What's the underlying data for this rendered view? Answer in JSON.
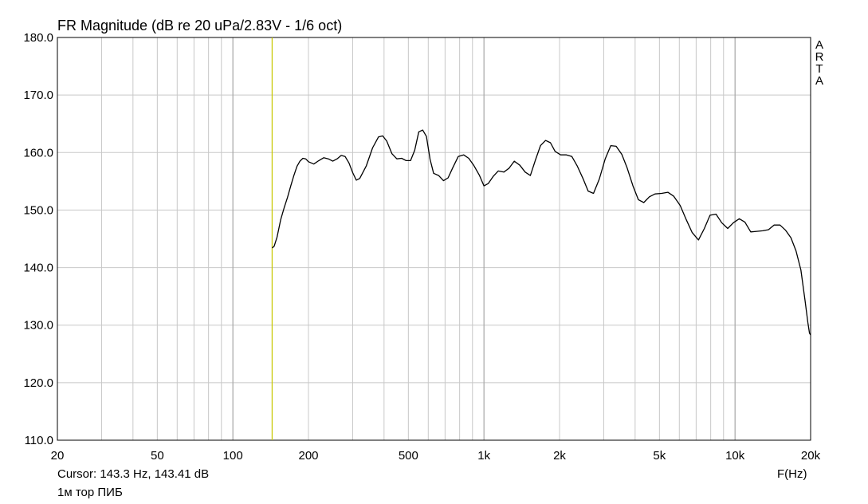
{
  "chart_data": {
    "type": "line",
    "title": "FR Magnitude (dB re 20 uPa/2.83V - 1/6 oct)",
    "side_label": [
      "A",
      "R",
      "T",
      "A"
    ],
    "xlabel": "F(Hz)",
    "ylabel": "",
    "xscale": "log",
    "xlim": [
      20,
      20000
    ],
    "ylim": [
      110,
      180
    ],
    "grid": true,
    "x_tick_values": [
      20,
      50,
      100,
      200,
      500,
      1000,
      2000,
      5000,
      10000,
      20000
    ],
    "x_tick_labels": [
      "20",
      "50",
      "100",
      "200",
      "500",
      "1k",
      "2k",
      "5k",
      "10k",
      "20k"
    ],
    "y_tick_values": [
      110,
      120,
      130,
      140,
      150,
      160,
      170,
      180
    ],
    "y_tick_labels": [
      "110.0",
      "120.0",
      "130.0",
      "140.0",
      "150.0",
      "160.0",
      "170.0",
      "180.0"
    ],
    "cursor": {
      "x": 143.3,
      "y": 143.41,
      "color": "#c8c800"
    },
    "cursor_text": "Cursor: 143.3 Hz, 143.41 dB",
    "note": "1м тор ПИБ",
    "series": [
      {
        "color": "#000000",
        "points": [
          [
            143.3,
            143.4
          ],
          [
            146,
            143.7
          ],
          [
            150,
            145.3
          ],
          [
            155,
            148.3
          ],
          [
            160,
            150.4
          ],
          [
            165,
            152.2
          ],
          [
            170,
            154.2
          ],
          [
            175,
            156.0
          ],
          [
            180,
            157.6
          ],
          [
            185,
            158.5
          ],
          [
            190,
            159.0
          ],
          [
            195,
            158.9
          ],
          [
            200,
            158.4
          ],
          [
            210,
            158.0
          ],
          [
            220,
            158.6
          ],
          [
            230,
            159.1
          ],
          [
            240,
            158.9
          ],
          [
            250,
            158.5
          ],
          [
            260,
            158.9
          ],
          [
            270,
            159.5
          ],
          [
            280,
            159.3
          ],
          [
            290,
            158.2
          ],
          [
            300,
            156.5
          ],
          [
            310,
            155.2
          ],
          [
            320,
            155.5
          ],
          [
            340,
            157.7
          ],
          [
            360,
            160.8
          ],
          [
            380,
            162.7
          ],
          [
            395,
            162.9
          ],
          [
            410,
            162.0
          ],
          [
            430,
            159.8
          ],
          [
            450,
            158.9
          ],
          [
            470,
            159.0
          ],
          [
            490,
            158.6
          ],
          [
            510,
            158.6
          ],
          [
            530,
            160.4
          ],
          [
            550,
            163.6
          ],
          [
            570,
            163.9
          ],
          [
            590,
            162.8
          ],
          [
            610,
            158.8
          ],
          [
            630,
            156.4
          ],
          [
            660,
            156.0
          ],
          [
            690,
            155.1
          ],
          [
            720,
            155.6
          ],
          [
            750,
            157.3
          ],
          [
            790,
            159.3
          ],
          [
            830,
            159.6
          ],
          [
            870,
            159.0
          ],
          [
            910,
            157.8
          ],
          [
            960,
            156.0
          ],
          [
            1000,
            154.2
          ],
          [
            1040,
            154.6
          ],
          [
            1090,
            155.9
          ],
          [
            1140,
            156.8
          ],
          [
            1200,
            156.6
          ],
          [
            1260,
            157.3
          ],
          [
            1320,
            158.5
          ],
          [
            1390,
            157.8
          ],
          [
            1460,
            156.6
          ],
          [
            1530,
            156.0
          ],
          [
            1600,
            158.6
          ],
          [
            1680,
            161.2
          ],
          [
            1760,
            162.1
          ],
          [
            1840,
            161.7
          ],
          [
            1920,
            160.2
          ],
          [
            2020,
            159.6
          ],
          [
            2130,
            159.6
          ],
          [
            2240,
            159.3
          ],
          [
            2350,
            157.7
          ],
          [
            2480,
            155.5
          ],
          [
            2600,
            153.3
          ],
          [
            2730,
            152.9
          ],
          [
            2880,
            155.4
          ],
          [
            3040,
            158.9
          ],
          [
            3200,
            161.2
          ],
          [
            3360,
            161.1
          ],
          [
            3540,
            159.7
          ],
          [
            3720,
            157.3
          ],
          [
            3920,
            154.2
          ],
          [
            4120,
            151.8
          ],
          [
            4330,
            151.3
          ],
          [
            4560,
            152.3
          ],
          [
            4800,
            152.8
          ],
          [
            5100,
            152.9
          ],
          [
            5400,
            153.1
          ],
          [
            5700,
            152.4
          ],
          [
            6050,
            150.8
          ],
          [
            6400,
            148.3
          ],
          [
            6750,
            146.1
          ],
          [
            7150,
            144.8
          ],
          [
            7550,
            146.8
          ],
          [
            7950,
            149.1
          ],
          [
            8400,
            149.3
          ],
          [
            8850,
            147.8
          ],
          [
            9350,
            146.8
          ],
          [
            9850,
            147.8
          ],
          [
            10400,
            148.5
          ],
          [
            10950,
            147.9
          ],
          [
            11550,
            146.2
          ],
          [
            12200,
            146.3
          ],
          [
            12900,
            146.4
          ],
          [
            13600,
            146.6
          ],
          [
            14300,
            147.4
          ],
          [
            15100,
            147.4
          ],
          [
            15900,
            146.5
          ],
          [
            16700,
            145.2
          ],
          [
            17500,
            142.9
          ],
          [
            18300,
            139.6
          ],
          [
            19000,
            134.3
          ],
          [
            19500,
            130.5
          ],
          [
            19800,
            128.6
          ],
          [
            20000,
            128.3
          ]
        ]
      }
    ]
  }
}
